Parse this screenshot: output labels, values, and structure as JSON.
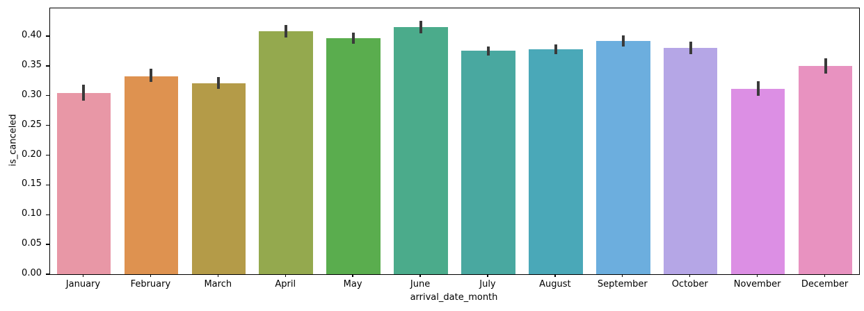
{
  "chart_data": {
    "type": "bar",
    "title": "",
    "xlabel": "arrival_date_month",
    "ylabel": "is_canceled",
    "categories": [
      "January",
      "February",
      "March",
      "April",
      "May",
      "June",
      "July",
      "August",
      "September",
      "October",
      "November",
      "December"
    ],
    "values": [
      0.305,
      0.333,
      0.321,
      0.408,
      0.397,
      0.415,
      0.375,
      0.378,
      0.392,
      0.38,
      0.312,
      0.35
    ],
    "error_low": [
      0.292,
      0.323,
      0.311,
      0.398,
      0.387,
      0.405,
      0.367,
      0.37,
      0.383,
      0.37,
      0.3,
      0.337
    ],
    "error_high": [
      0.318,
      0.345,
      0.331,
      0.419,
      0.406,
      0.426,
      0.383,
      0.386,
      0.401,
      0.391,
      0.324,
      0.363
    ],
    "bar_colors": [
      "#e897a6",
      "#de9250",
      "#b49b48",
      "#94a94e",
      "#5aad4e",
      "#4bab8b",
      "#49a8a0",
      "#4aa8b8",
      "#6caede",
      "#b5a6e6",
      "#dc8fe4",
      "#e892c0"
    ],
    "errorbar_color": "#3a3a3a",
    "yticks": [
      0.0,
      0.05,
      0.1,
      0.15,
      0.2,
      0.25,
      0.3,
      0.35,
      0.4
    ],
    "ylim": [
      0,
      0.4467
    ],
    "bar_width_fraction": 0.8,
    "grid": false,
    "legend": null
  }
}
